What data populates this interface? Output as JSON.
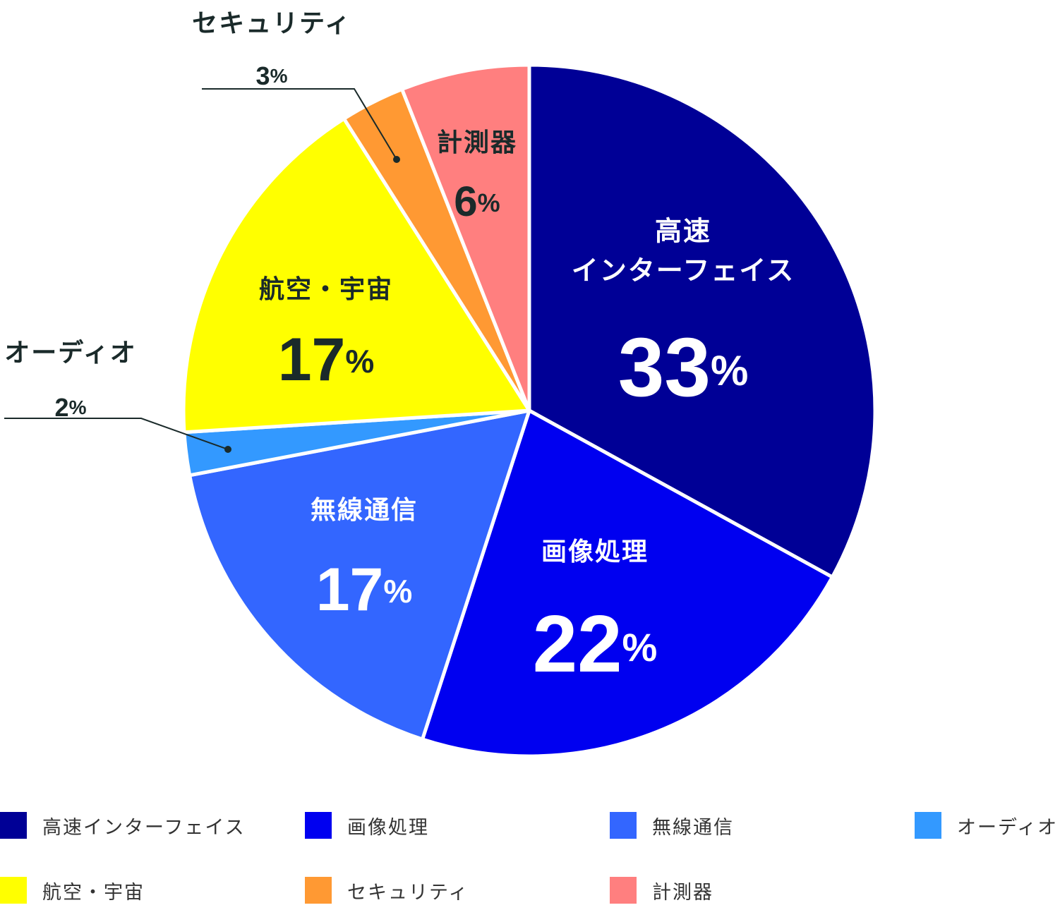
{
  "chart_data": {
    "type": "pie",
    "title": "",
    "slices": [
      {
        "name": "高速インターフェイス",
        "label_lines": [
          "高速",
          "インターフェイス"
        ],
        "value": 33,
        "unit": "%",
        "color": "#000096",
        "text_color": "#ffffff"
      },
      {
        "name": "画像処理",
        "label_lines": [
          "画像処理"
        ],
        "value": 22,
        "unit": "%",
        "color": "#0000f0",
        "text_color": "#ffffff"
      },
      {
        "name": "無線通信",
        "label_lines": [
          "無線通信"
        ],
        "value": 17,
        "unit": "%",
        "color": "#3366ff",
        "text_color": "#ffffff"
      },
      {
        "name": "オーディオ",
        "label_lines": [
          "オーディオ"
        ],
        "value": 2,
        "unit": "%",
        "color": "#3399ff",
        "text_color": "#1a2a2a"
      },
      {
        "name": "航空・宇宙",
        "label_lines": [
          "航空・宇宙"
        ],
        "value": 17,
        "unit": "%",
        "color": "#ffff00",
        "text_color": "#1a2a2a"
      },
      {
        "name": "セキュリティ",
        "label_lines": [
          "セキュリティ"
        ],
        "value": 3,
        "unit": "%",
        "color": "#ff9933",
        "text_color": "#1a2a2a"
      },
      {
        "name": "計測器",
        "label_lines": [
          "計測器"
        ],
        "value": 6,
        "unit": "%",
        "color": "#ff7f7f",
        "text_color": "#1a2a2a"
      }
    ],
    "start_angle": "12 o'clock",
    "direction": "clockwise",
    "legend_position": "bottom"
  },
  "legend": [
    {
      "label": "高速インターフェイス",
      "color": "#000096"
    },
    {
      "label": "画像処理",
      "color": "#0000f0"
    },
    {
      "label": "無線通信",
      "color": "#3366ff"
    },
    {
      "label": "オーディオ",
      "color": "#3399ff"
    },
    {
      "label": "航空・宇宙",
      "color": "#ffff00"
    },
    {
      "label": "セキュリティ",
      "color": "#ff9933"
    },
    {
      "label": "計測器",
      "color": "#ff7f7f"
    }
  ]
}
